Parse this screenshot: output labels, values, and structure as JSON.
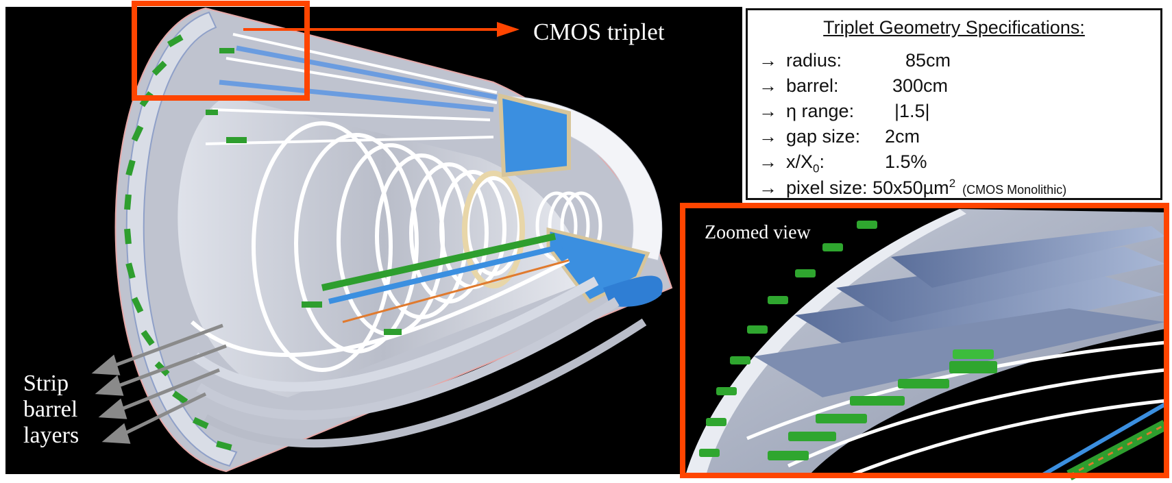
{
  "labels": {
    "cmos_triplet": "CMOS triplet",
    "zoomed_view": "Zoomed view",
    "strip_lines": [
      "Strip",
      "barrel",
      "layers"
    ]
  },
  "specs": {
    "title": "Triplet Geometry Specifications:",
    "rows": [
      {
        "arrow": "→",
        "label": "radius:",
        "value": "85cm"
      },
      {
        "arrow": "→",
        "label": "barrel:",
        "value": "300cm"
      },
      {
        "arrow": "→",
        "label": "η range:",
        "value": "|1.5|"
      },
      {
        "arrow": "→",
        "label": "gap size:",
        "value": "2cm"
      },
      {
        "arrow": "→",
        "label_main": "x/X",
        "label_sub": "0",
        "label_tail": ":",
        "value": "1.5%"
      },
      {
        "arrow": "→",
        "label": "pixel size:",
        "value_main": "50x50µm",
        "value_sup": "2",
        "note": "(CMOS Monolithic)"
      }
    ]
  },
  "colors": {
    "highlight": "#ff4500",
    "module_green": "#2e9e2e",
    "pixel_blue": "#3b8fe0",
    "barrel_grey": "#c9ccd6",
    "background": "#000000"
  }
}
